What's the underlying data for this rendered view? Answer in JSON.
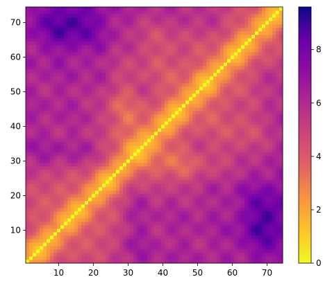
{
  "chart_data": {
    "type": "heatmap",
    "title": "",
    "xlabel": "",
    "ylabel": "",
    "size": 74,
    "xlim": [
      1,
      74
    ],
    "ylim": [
      1,
      74
    ],
    "xticks": [
      10,
      20,
      30,
      40,
      50,
      60,
      70
    ],
    "yticks": [
      10,
      20,
      30,
      40,
      50,
      60,
      70
    ],
    "xtick_labels": [
      "10",
      "20",
      "30",
      "40",
      "50",
      "60",
      "70"
    ],
    "ytick_labels": [
      "10",
      "20",
      "30",
      "40",
      "50",
      "60",
      "70"
    ],
    "colormap": "plasma_r",
    "colorbar": {
      "min": 0,
      "max": 9.6,
      "ticks": [
        0,
        2,
        4,
        6,
        8
      ],
      "tick_labels": [
        "0",
        "2",
        "4",
        "6",
        "8"
      ]
    },
    "grid": false,
    "description_of_values": "symmetric pairwise distance matrix; zero on diagonal, larger values far from diagonal, maximum near index pairs (1-25, 60-74)"
  }
}
